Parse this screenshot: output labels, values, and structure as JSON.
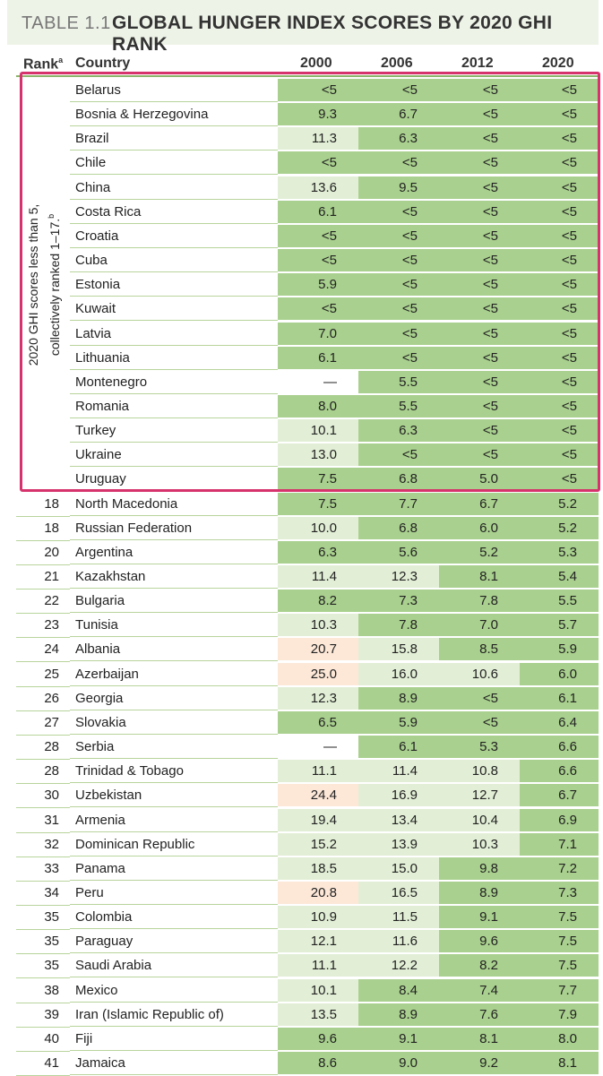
{
  "title": {
    "label": "TABLE 1.1",
    "text": "GLOBAL HUNGER INDEX SCORES BY 2020 GHI RANK"
  },
  "header": {
    "rank": "Rank",
    "rank_sup": "a",
    "country": "Country",
    "years": [
      "2000",
      "2006",
      "2012",
      "2020"
    ]
  },
  "group_note": {
    "line1": "2020 GHI scores less than 5,",
    "line2": "collectively ranked 1–17.",
    "sup": "b"
  },
  "colors": {
    "green": "#a9d08e",
    "light_green": "#e2efd6",
    "white": "#ffffff",
    "peach": "#fde8d8",
    "highlight": "#d6336c"
  },
  "rows": [
    {
      "rank": "",
      "country": "Belarus",
      "v": [
        "<5",
        "<5",
        "<5",
        "<5"
      ],
      "c": [
        "g",
        "g",
        "g",
        "g"
      ]
    },
    {
      "rank": "",
      "country": "Bosnia & Herzegovina",
      "v": [
        "9.3",
        "6.7",
        "<5",
        "<5"
      ],
      "c": [
        "g",
        "g",
        "g",
        "g"
      ]
    },
    {
      "rank": "",
      "country": "Brazil",
      "v": [
        "11.3",
        "6.3",
        "<5",
        "<5"
      ],
      "c": [
        "lg",
        "g",
        "g",
        "g"
      ]
    },
    {
      "rank": "",
      "country": "Chile",
      "v": [
        "<5",
        "<5",
        "<5",
        "<5"
      ],
      "c": [
        "g",
        "g",
        "g",
        "g"
      ]
    },
    {
      "rank": "",
      "country": "China",
      "v": [
        "13.6",
        "9.5",
        "<5",
        "<5"
      ],
      "c": [
        "lg",
        "g",
        "g",
        "g"
      ]
    },
    {
      "rank": "",
      "country": "Costa Rica",
      "v": [
        "6.1",
        "<5",
        "<5",
        "<5"
      ],
      "c": [
        "g",
        "g",
        "g",
        "g"
      ]
    },
    {
      "rank": "",
      "country": "Croatia",
      "v": [
        "<5",
        "<5",
        "<5",
        "<5"
      ],
      "c": [
        "g",
        "g",
        "g",
        "g"
      ]
    },
    {
      "rank": "",
      "country": "Cuba",
      "v": [
        "<5",
        "<5",
        "<5",
        "<5"
      ],
      "c": [
        "g",
        "g",
        "g",
        "g"
      ]
    },
    {
      "rank": "",
      "country": "Estonia",
      "v": [
        "5.9",
        "<5",
        "<5",
        "<5"
      ],
      "c": [
        "g",
        "g",
        "g",
        "g"
      ]
    },
    {
      "rank": "",
      "country": "Kuwait",
      "v": [
        "<5",
        "<5",
        "<5",
        "<5"
      ],
      "c": [
        "g",
        "g",
        "g",
        "g"
      ]
    },
    {
      "rank": "",
      "country": "Latvia",
      "v": [
        "7.0",
        "<5",
        "<5",
        "<5"
      ],
      "c": [
        "g",
        "g",
        "g",
        "g"
      ]
    },
    {
      "rank": "",
      "country": "Lithuania",
      "v": [
        "6.1",
        "<5",
        "<5",
        "<5"
      ],
      "c": [
        "g",
        "g",
        "g",
        "g"
      ]
    },
    {
      "rank": "",
      "country": "Montenegro",
      "v": [
        "—",
        "5.5",
        "<5",
        "<5"
      ],
      "c": [
        "w",
        "g",
        "g",
        "g"
      ]
    },
    {
      "rank": "",
      "country": "Romania",
      "v": [
        "8.0",
        "5.5",
        "<5",
        "<5"
      ],
      "c": [
        "g",
        "g",
        "g",
        "g"
      ]
    },
    {
      "rank": "",
      "country": "Turkey",
      "v": [
        "10.1",
        "6.3",
        "<5",
        "<5"
      ],
      "c": [
        "lg",
        "g",
        "g",
        "g"
      ]
    },
    {
      "rank": "",
      "country": "Ukraine",
      "v": [
        "13.0",
        "<5",
        "<5",
        "<5"
      ],
      "c": [
        "lg",
        "g",
        "g",
        "g"
      ]
    },
    {
      "rank": "",
      "country": "Uruguay",
      "v": [
        "7.5",
        "6.8",
        "5.0",
        "<5"
      ],
      "c": [
        "g",
        "g",
        "g",
        "g"
      ]
    },
    {
      "rank": "18",
      "country": "North Macedonia",
      "v": [
        "7.5",
        "7.7",
        "6.7",
        "5.2"
      ],
      "c": [
        "g",
        "g",
        "g",
        "g"
      ]
    },
    {
      "rank": "18",
      "country": "Russian Federation",
      "v": [
        "10.0",
        "6.8",
        "6.0",
        "5.2"
      ],
      "c": [
        "lg",
        "g",
        "g",
        "g"
      ]
    },
    {
      "rank": "20",
      "country": "Argentina",
      "v": [
        "6.3",
        "5.6",
        "5.2",
        "5.3"
      ],
      "c": [
        "g",
        "g",
        "g",
        "g"
      ]
    },
    {
      "rank": "21",
      "country": "Kazakhstan",
      "v": [
        "11.4",
        "12.3",
        "8.1",
        "5.4"
      ],
      "c": [
        "lg",
        "lg",
        "g",
        "g"
      ]
    },
    {
      "rank": "22",
      "country": "Bulgaria",
      "v": [
        "8.2",
        "7.3",
        "7.8",
        "5.5"
      ],
      "c": [
        "g",
        "g",
        "g",
        "g"
      ]
    },
    {
      "rank": "23",
      "country": "Tunisia",
      "v": [
        "10.3",
        "7.8",
        "7.0",
        "5.7"
      ],
      "c": [
        "lg",
        "g",
        "g",
        "g"
      ]
    },
    {
      "rank": "24",
      "country": "Albania",
      "v": [
        "20.7",
        "15.8",
        "8.5",
        "5.9"
      ],
      "c": [
        "p",
        "lg",
        "g",
        "g"
      ]
    },
    {
      "rank": "25",
      "country": "Azerbaijan",
      "v": [
        "25.0",
        "16.0",
        "10.6",
        "6.0"
      ],
      "c": [
        "p",
        "lg",
        "lg",
        "g"
      ]
    },
    {
      "rank": "26",
      "country": "Georgia",
      "v": [
        "12.3",
        "8.9",
        "<5",
        "6.1"
      ],
      "c": [
        "lg",
        "g",
        "g",
        "g"
      ]
    },
    {
      "rank": "27",
      "country": "Slovakia",
      "v": [
        "6.5",
        "5.9",
        "<5",
        "6.4"
      ],
      "c": [
        "g",
        "g",
        "g",
        "g"
      ]
    },
    {
      "rank": "28",
      "country": "Serbia",
      "v": [
        "—",
        "6.1",
        "5.3",
        "6.6"
      ],
      "c": [
        "w",
        "g",
        "g",
        "g"
      ]
    },
    {
      "rank": "28",
      "country": "Trinidad & Tobago",
      "v": [
        "11.1",
        "11.4",
        "10.8",
        "6.6"
      ],
      "c": [
        "lg",
        "lg",
        "lg",
        "g"
      ]
    },
    {
      "rank": "30",
      "country": "Uzbekistan",
      "v": [
        "24.4",
        "16.9",
        "12.7",
        "6.7"
      ],
      "c": [
        "p",
        "lg",
        "lg",
        "g"
      ]
    },
    {
      "rank": "31",
      "country": "Armenia",
      "v": [
        "19.4",
        "13.4",
        "10.4",
        "6.9"
      ],
      "c": [
        "lg",
        "lg",
        "lg",
        "g"
      ]
    },
    {
      "rank": "32",
      "country": "Dominican Republic",
      "v": [
        "15.2",
        "13.9",
        "10.3",
        "7.1"
      ],
      "c": [
        "lg",
        "lg",
        "lg",
        "g"
      ]
    },
    {
      "rank": "33",
      "country": "Panama",
      "v": [
        "18.5",
        "15.0",
        "9.8",
        "7.2"
      ],
      "c": [
        "lg",
        "lg",
        "g",
        "g"
      ]
    },
    {
      "rank": "34",
      "country": "Peru",
      "v": [
        "20.8",
        "16.5",
        "8.9",
        "7.3"
      ],
      "c": [
        "p",
        "lg",
        "g",
        "g"
      ]
    },
    {
      "rank": "35",
      "country": "Colombia",
      "v": [
        "10.9",
        "11.5",
        "9.1",
        "7.5"
      ],
      "c": [
        "lg",
        "lg",
        "g",
        "g"
      ]
    },
    {
      "rank": "35",
      "country": "Paraguay",
      "v": [
        "12.1",
        "11.6",
        "9.6",
        "7.5"
      ],
      "c": [
        "lg",
        "lg",
        "g",
        "g"
      ]
    },
    {
      "rank": "35",
      "country": "Saudi Arabia",
      "v": [
        "11.1",
        "12.2",
        "8.2",
        "7.5"
      ],
      "c": [
        "lg",
        "lg",
        "g",
        "g"
      ]
    },
    {
      "rank": "38",
      "country": "Mexico",
      "v": [
        "10.1",
        "8.4",
        "7.4",
        "7.7"
      ],
      "c": [
        "lg",
        "g",
        "g",
        "g"
      ]
    },
    {
      "rank": "39",
      "country": "Iran (Islamic Republic of)",
      "v": [
        "13.5",
        "8.9",
        "7.6",
        "7.9"
      ],
      "c": [
        "lg",
        "g",
        "g",
        "g"
      ]
    },
    {
      "rank": "40",
      "country": "Fiji",
      "v": [
        "9.6",
        "9.1",
        "8.1",
        "8.0"
      ],
      "c": [
        "g",
        "g",
        "g",
        "g"
      ]
    },
    {
      "rank": "41",
      "country": "Jamaica",
      "v": [
        "8.6",
        "9.0",
        "9.2",
        "8.1"
      ],
      "c": [
        "g",
        "g",
        "g",
        "g"
      ]
    }
  ]
}
